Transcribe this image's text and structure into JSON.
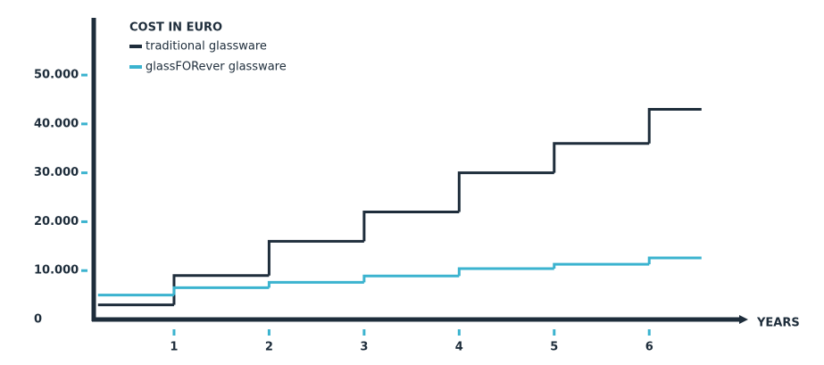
{
  "chart_data": {
    "type": "step",
    "title": "COST IN EURO",
    "x_label": "YEARS",
    "x": [
      0.2,
      1,
      2,
      3,
      4,
      5,
      6,
      6.55
    ],
    "series": [
      {
        "name": "traditional glassware",
        "color": "#1e2d3b",
        "values": [
          3000,
          9000,
          16000,
          22000,
          30000,
          36000,
          43000,
          43000
        ]
      },
      {
        "name": "glassFORever glassware",
        "color": "#3bb3cf",
        "values": [
          5000,
          6500,
          7600,
          8900,
          10400,
          11300,
          12600,
          12600
        ]
      }
    ],
    "xlim": [
      0,
      7.05
    ],
    "xticks": [
      1,
      2,
      3,
      4,
      5,
      6
    ],
    "ylim": [
      0,
      61700
    ],
    "yticks": [
      0,
      {
        "value": 10000,
        "label": "10.000"
      },
      {
        "value": 20000,
        "label": "20.000"
      },
      {
        "value": 30000,
        "label": "30.000"
      },
      {
        "value": 40000,
        "label": "40.000"
      },
      {
        "value": 50000,
        "label": "50.000"
      }
    ],
    "tick_color": "#3bb3cf",
    "axis_color": "#1e2d3b"
  }
}
